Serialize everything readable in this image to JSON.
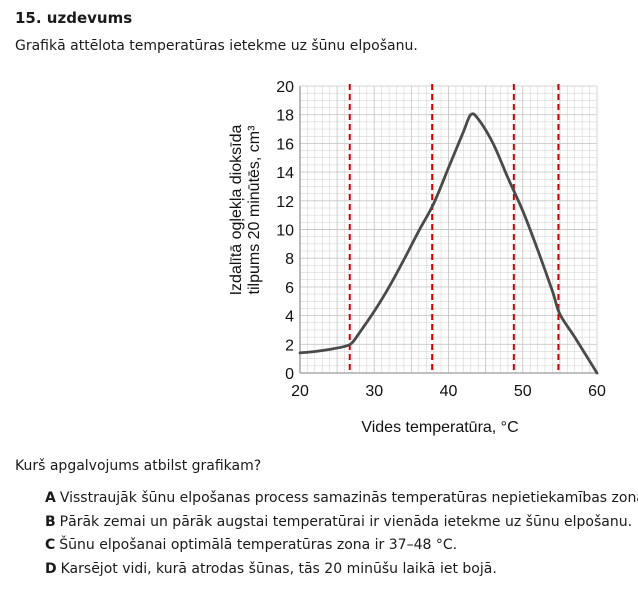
{
  "task": {
    "title": "15. uzdevums",
    "intro": "Grafikā attēlota temperatūras ietekme uz šūnu elpošanu."
  },
  "question": "Kurš apgalvojums atbilst grafikam?",
  "options": [
    {
      "letter": "A",
      "text": "Visstraujāk šūnu elpošanas process samazinās temperatūras nepietiekamības zonā."
    },
    {
      "letter": "B",
      "text": "Pārāk zemai un pārāk augstai temperatūrai ir vienāda ietekme uz šūnu elpošanu."
    },
    {
      "letter": "C",
      "text": "Šūnu elpošanai optimālā temperatūras zona ir 37–48 °C."
    },
    {
      "letter": "D",
      "text": "Karsējot vidi, kurā atrodas šūnas, tās 20 minūšu laikā iet bojā."
    }
  ],
  "colors": {
    "curve": "#4a4a4a",
    "dashed": "#d40000",
    "grid": "#c8c8c8",
    "axis": "#333333"
  },
  "chart_data": {
    "type": "line",
    "xlabel": "Vides temperatūra, °C",
    "ylabel_line1": "Izdalītā ogļekļa dioksīda",
    "ylabel_line2": "tilpums 20 minūtēs, cm³",
    "xlim": [
      20,
      60
    ],
    "ylim": [
      0,
      20
    ],
    "xticks": [
      20,
      30,
      40,
      50,
      60
    ],
    "yticks": [
      0,
      2,
      4,
      6,
      8,
      10,
      12,
      14,
      16,
      18,
      20
    ],
    "grid": true,
    "series": [
      {
        "x": [
          20,
          22,
          24,
          26,
          27,
          28,
          30,
          32,
          34,
          36,
          38,
          40,
          42,
          43,
          44,
          46,
          48,
          50,
          52,
          54,
          55,
          57,
          60
        ],
        "y": [
          1.4,
          1.5,
          1.65,
          1.85,
          2.1,
          2.8,
          4.3,
          6.0,
          7.9,
          9.9,
          11.8,
          14.3,
          16.8,
          18.0,
          17.7,
          16.0,
          13.6,
          11.3,
          8.6,
          5.7,
          4.1,
          2.5,
          0
        ]
      }
    ],
    "reference_lines_x": [
      26.7,
      37.8,
      48.8,
      54.8
    ]
  }
}
